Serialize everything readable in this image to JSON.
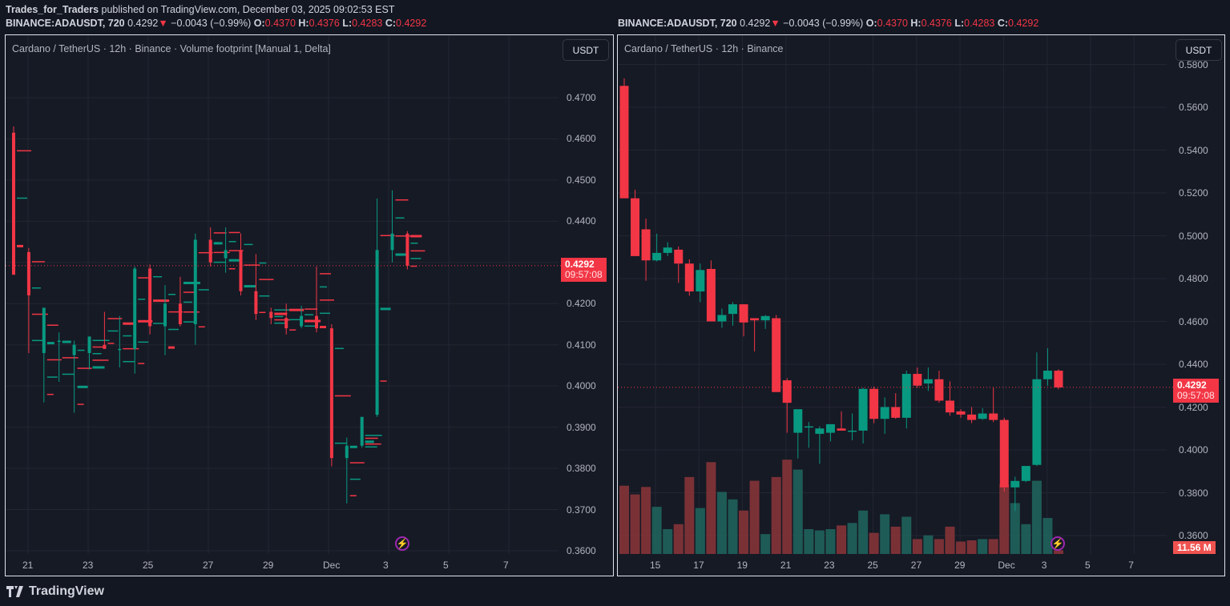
{
  "header": {
    "author": "Trades_for_Traders",
    "published_text": " published on TradingView.com, December 03, 2025 09:02:53 EST",
    "symbol_line": {
      "symbol": "BINANCE:ADAUSDT, 720",
      "last": "0.4292",
      "arrow": "▼",
      "change": "−0.0043 (−0.99%)",
      "o_label": "O:",
      "o": "0.4370",
      "h_label": "H:",
      "h": "0.4376",
      "l_label": "L:",
      "l": "0.4283",
      "c_label": "C:",
      "c": "0.4292"
    }
  },
  "left_chart": {
    "legend": "Cardano / TetherUS · 12h · Binance · Volume footprint [Manual 1, Delta]",
    "currency_button": "USDT",
    "price_labels": [
      "0.4700",
      "0.4600",
      "0.4500",
      "0.4400",
      "0.4200",
      "0.4100",
      "0.4000",
      "0.3900",
      "0.3800",
      "0.3700",
      "0.3600"
    ],
    "last_price_tag": "0.4292",
    "countdown": "09:57:08",
    "x_labels": [
      "21",
      "23",
      "25",
      "27",
      "29",
      "Dec",
      "3",
      "5",
      "7"
    ]
  },
  "right_chart": {
    "legend": "Cardano / TetherUS · 12h · Binance",
    "currency_button": "USDT",
    "price_labels": [
      "0.5800",
      "0.5600",
      "0.5400",
      "0.5200",
      "0.5000",
      "0.4800",
      "0.4600",
      "0.4400",
      "0.4200",
      "0.4000",
      "0.3800",
      "0.3600"
    ],
    "last_price_tag": "0.4292",
    "countdown": "09:57:08",
    "volume_tag": "11.56 M",
    "x_labels": [
      "15",
      "17",
      "19",
      "21",
      "23",
      "25",
      "27",
      "29",
      "Dec",
      "3",
      "5",
      "7"
    ]
  },
  "footer": {
    "logo_text": "TradingView"
  },
  "colors": {
    "up": "#089981",
    "down": "#f23645",
    "bg": "#161a25",
    "grid": "#232632"
  },
  "chart_data": {
    "type": "candlestick",
    "title": "Cardano / TetherUS · 12h · Binance",
    "ylabel": "USDT",
    "ylim": [
      0.355,
      0.582
    ],
    "last_price": 0.4292,
    "candles": [
      {
        "o": 0.57,
        "h": 0.5735,
        "l": 0.519,
        "c": 0.5175
      },
      {
        "o": 0.5175,
        "h": 0.5215,
        "l": 0.496,
        "c": 0.4905
      },
      {
        "o": 0.503,
        "h": 0.508,
        "l": 0.479,
        "c": 0.4885
      },
      {
        "o": 0.4885,
        "h": 0.501,
        "l": 0.488,
        "c": 0.492
      },
      {
        "o": 0.492,
        "h": 0.497,
        "l": 0.4905,
        "c": 0.4945
      },
      {
        "o": 0.4935,
        "h": 0.495,
        "l": 0.478,
        "c": 0.487
      },
      {
        "o": 0.487,
        "h": 0.489,
        "l": 0.472,
        "c": 0.474
      },
      {
        "o": 0.474,
        "h": 0.487,
        "l": 0.469,
        "c": 0.484
      },
      {
        "o": 0.4845,
        "h": 0.4885,
        "l": 0.4625,
        "c": 0.46
      },
      {
        "o": 0.46,
        "h": 0.466,
        "l": 0.457,
        "c": 0.463
      },
      {
        "o": 0.4635,
        "h": 0.469,
        "l": 0.458,
        "c": 0.468
      },
      {
        "o": 0.468,
        "h": 0.468,
        "l": 0.453,
        "c": 0.4595
      },
      {
        "o": 0.4615,
        "h": 0.461,
        "l": 0.446,
        "c": 0.4605
      },
      {
        "o": 0.4605,
        "h": 0.463,
        "l": 0.4565,
        "c": 0.4625
      },
      {
        "o": 0.4615,
        "h": 0.463,
        "l": 0.4285,
        "c": 0.427
      },
      {
        "o": 0.4325,
        "h": 0.4335,
        "l": 0.408,
        "c": 0.422
      },
      {
        "o": 0.408,
        "h": 0.417,
        "l": 0.396,
        "c": 0.419
      },
      {
        "o": 0.411,
        "h": 0.413,
        "l": 0.401,
        "c": 0.411
      },
      {
        "o": 0.4075,
        "h": 0.411,
        "l": 0.3935,
        "c": 0.41
      },
      {
        "o": 0.408,
        "h": 0.412,
        "l": 0.404,
        "c": 0.412
      },
      {
        "o": 0.41,
        "h": 0.418,
        "l": 0.409,
        "c": 0.409
      },
      {
        "o": 0.409,
        "h": 0.417,
        "l": 0.4045,
        "c": 0.409
      },
      {
        "o": 0.409,
        "h": 0.429,
        "l": 0.403,
        "c": 0.4285
      },
      {
        "o": 0.4285,
        "h": 0.4295,
        "l": 0.4125,
        "c": 0.4145
      },
      {
        "o": 0.4145,
        "h": 0.4245,
        "l": 0.4075,
        "c": 0.42
      },
      {
        "o": 0.42,
        "h": 0.4265,
        "l": 0.4145,
        "c": 0.415
      },
      {
        "o": 0.415,
        "h": 0.437,
        "l": 0.41,
        "c": 0.4355
      },
      {
        "o": 0.4355,
        "h": 0.4385,
        "l": 0.429,
        "c": 0.43
      },
      {
        "o": 0.431,
        "h": 0.4385,
        "l": 0.4275,
        "c": 0.433
      },
      {
        "o": 0.433,
        "h": 0.437,
        "l": 0.422,
        "c": 0.423
      },
      {
        "o": 0.423,
        "h": 0.432,
        "l": 0.416,
        "c": 0.4175
      },
      {
        "o": 0.418,
        "h": 0.419,
        "l": 0.415,
        "c": 0.4165
      },
      {
        "o": 0.4165,
        "h": 0.42,
        "l": 0.4125,
        "c": 0.414
      },
      {
        "o": 0.4145,
        "h": 0.4195,
        "l": 0.414,
        "c": 0.417
      },
      {
        "o": 0.417,
        "h": 0.429,
        "l": 0.413,
        "c": 0.414
      },
      {
        "o": 0.414,
        "h": 0.415,
        "l": 0.3805,
        "c": 0.3825
      },
      {
        "o": 0.3825,
        "h": 0.3875,
        "l": 0.3715,
        "c": 0.3855
      },
      {
        "o": 0.3855,
        "h": 0.3885,
        "l": 0.385,
        "c": 0.3925
      },
      {
        "o": 0.393,
        "h": 0.4455,
        "l": 0.3925,
        "c": 0.433
      },
      {
        "o": 0.433,
        "h": 0.4475,
        "l": 0.43,
        "c": 0.437
      },
      {
        "o": 0.437,
        "h": 0.4376,
        "l": 0.4283,
        "c": 0.4292
      }
    ],
    "volume": [
      0.55,
      0.48,
      0.54,
      0.38,
      0.2,
      0.24,
      0.62,
      0.37,
      0.74,
      0.5,
      0.44,
      0.35,
      0.59,
      0.16,
      0.62,
      0.76,
      0.68,
      0.2,
      0.19,
      0.2,
      0.23,
      0.25,
      0.35,
      0.17,
      0.32,
      0.22,
      0.3,
      0.12,
      0.15,
      0.12,
      0.22,
      0.1,
      0.11,
      0.12,
      0.12,
      0.56,
      0.41,
      0.24,
      0.59,
      0.29,
      0.03
    ],
    "volume_last": "11.56 M"
  }
}
